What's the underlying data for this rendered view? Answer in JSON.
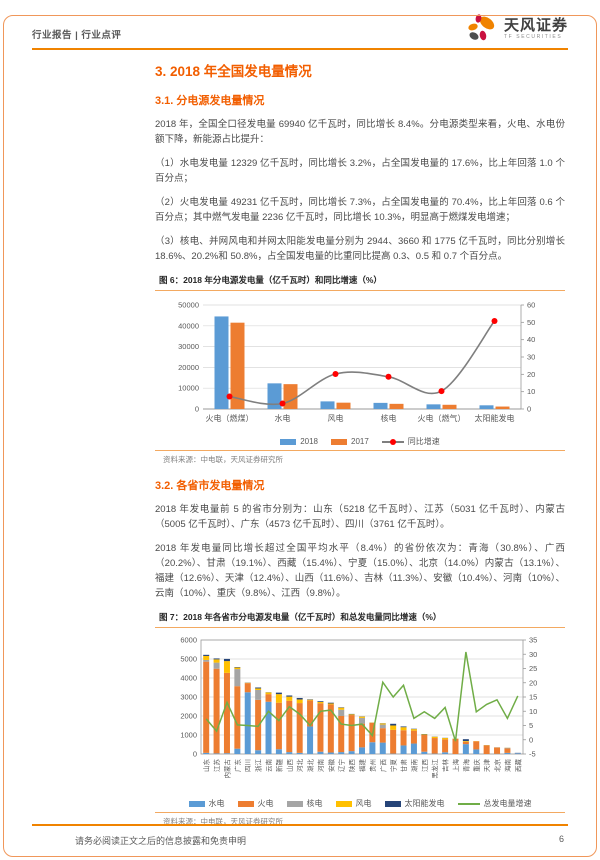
{
  "colors": {
    "accent_orange": "#f08300",
    "heading_orange": "#f25e00",
    "rule_light_orange": "#f3a961"
  },
  "header": {
    "left_label": "行业报告 | 行业点评",
    "brand_name": "天风证券",
    "brand_sub": "TF SECURITIES"
  },
  "sections": {
    "h1": "3. 2018 年全国发电量情况",
    "h2a": "3.1. 分电源发电量情况",
    "p1": "2018 年，全国全口径发电量 69940 亿千瓦时，同比增长 8.4%。分电源类型来看，火电、水电份额下降，新能源占比提升：",
    "p2": "（1）水电发电量 12329 亿千瓦时，同比增长 3.2%，占全国发电量的 17.6%，比上年回落 1.0 个百分点；",
    "p3": "（2）火电发电量 49231 亿千瓦时，同比增长 7.3%，占全国发电量的 70.4%，比上年回落 0.6 个百分点；其中燃气发电量 2236 亿千瓦时，同比增长 10.3%，明显高于燃煤发电增速；",
    "p4": "（3）核电、并网风电和并网太阳能发电量分别为 2944、3660 和 1775 亿千瓦时，同比分别增长 18.6%、20.2%和 50.8%，占全国发电量的比重同比提高 0.3、0.5 和 0.7 个百分点。",
    "h2b": "3.2. 各省市发电量情况",
    "p5": "2018 年发电量前 5 的省市分别为：山东（5218 亿千瓦时）、江苏（5031 亿千瓦时）、内蒙古（5005 亿千瓦时）、广东（4573 亿千瓦时）、四川（3761 亿千瓦时）。",
    "p6": "2018 年发电量同比增长超过全国平均水平（8.4%）的省份依次为：青海（30.8%）、广西（20.2%）、甘肃（19.1%）、西藏（15.4%）、宁夏（15.0%）、北京（14.0%）内蒙古（13.1%）、福建（12.6%）、天津（12.4%）、山西（11.6%）、吉林（11.3%）、安徽（10.4%）、河南（10%）、云南（10%）、重庆（9.8%）、江西（9.8%）。"
  },
  "fig6": {
    "caption": "图 6：2018 年分电源发电量（亿千瓦时）和同比增速（%）",
    "source": "资料来源：中电联，天风证券研究所"
  },
  "fig7": {
    "caption": "图 7：2018 年各省市分电源发电量（亿千瓦时）和总发电量同比增速（%）",
    "source": "资料来源：中电联，天风证券研究所"
  },
  "footer": {
    "disclaimer": "请务必阅读正文之后的信息披露和免责申明",
    "page": "6"
  },
  "chart_data": [
    {
      "type": "bar",
      "subtype": "grouped-bar-with-line",
      "title": "2018 年分电源发电量（亿千瓦时）和同比增速（%）",
      "categories": [
        "火电（燃煤）",
        "水电",
        "风电",
        "核电",
        "火电（燃气）",
        "太阳能发电"
      ],
      "series": [
        {
          "name": "2018",
          "color": "#5b9bd5",
          "values": [
            44500,
            12329,
            3660,
            2944,
            2236,
            1775
          ]
        },
        {
          "name": "2017",
          "color": "#ed7d31",
          "values": [
            41500,
            11945,
            3046,
            2483,
            2027,
            1177
          ]
        }
      ],
      "line": {
        "name": "同比增速",
        "color": "#7f7f7f",
        "marker": "#ff0000",
        "values": [
          7.2,
          3.2,
          20.2,
          18.6,
          10.3,
          50.8
        ]
      },
      "y_left": {
        "min": 0,
        "max": 50000,
        "step": 10000
      },
      "y_right": {
        "min": 0,
        "max": 60,
        "step": 10
      },
      "grid": true,
      "legend_position": "bottom"
    },
    {
      "type": "bar",
      "subtype": "stacked-bar-with-line",
      "title": "2018 年各省市分电源发电量（亿千瓦时）和总发电量同比增速（%）",
      "categories": [
        "山东",
        "江苏",
        "内蒙古",
        "广东",
        "四川",
        "浙江",
        "云南",
        "新疆",
        "山西",
        "河北",
        "湖北",
        "河南",
        "安徽",
        "辽宁",
        "陕西",
        "福建",
        "贵州",
        "广西",
        "宁夏",
        "甘肃",
        "湖南",
        "江西",
        "黑龙江",
        "吉林",
        "上海",
        "青海",
        "重庆",
        "天津",
        "北京",
        "海南",
        "西藏"
      ],
      "series": [
        {
          "name": "水电",
          "color": "#5b9bd5",
          "values": [
            60,
            30,
            40,
            280,
            3250,
            200,
            2750,
            250,
            100,
            60,
            1450,
            120,
            80,
            100,
            150,
            350,
            620,
            600,
            20,
            450,
            550,
            120,
            20,
            90,
            0,
            520,
            240,
            0,
            10,
            60,
            40
          ]
        },
        {
          "name": "火电",
          "color": "#ed7d31",
          "values": [
            4800,
            4460,
            4230,
            3290,
            480,
            2650,
            400,
            2450,
            2700,
            2620,
            1370,
            2550,
            2530,
            1900,
            1900,
            1250,
            1020,
            760,
            1250,
            800,
            680,
            880,
            820,
            680,
            795,
            120,
            430,
            450,
            330,
            230,
            5
          ]
        },
        {
          "name": "核电",
          "color": "#a5a5a5",
          "values": [
            90,
            320,
            0,
            900,
            0,
            520,
            0,
            0,
            0,
            0,
            0,
            0,
            0,
            330,
            0,
            300,
            0,
            190,
            0,
            0,
            0,
            0,
            0,
            0,
            0,
            0,
            0,
            0,
            0,
            25,
            0
          ]
        },
        {
          "name": "风电",
          "color": "#ffc000",
          "values": [
            210,
            170,
            620,
            80,
            20,
            80,
            90,
            450,
            220,
            190,
            40,
            70,
            50,
            110,
            40,
            70,
            15,
            60,
            230,
            160,
            80,
            30,
            70,
            70,
            15,
            40,
            10,
            15,
            5,
            10,
            0
          ]
        },
        {
          "name": "太阳能发电",
          "color": "#264478",
          "values": [
            60,
            50,
            115,
            25,
            10,
            50,
            10,
            80,
            60,
            80,
            20,
            40,
            40,
            20,
            20,
            10,
            5,
            10,
            90,
            40,
            20,
            20,
            10,
            10,
            5,
            100,
            0,
            5,
            5,
            5,
            15
          ]
        }
      ],
      "line": {
        "name": "总发电量增速",
        "color": "#70ad47",
        "values": [
          7.3,
          3.0,
          13.1,
          5.2,
          5.0,
          4.7,
          10.0,
          6.7,
          11.6,
          9.0,
          5.0,
          10.0,
          10.4,
          5.5,
          5.0,
          5.5,
          1.5,
          20.2,
          15.0,
          19.1,
          7.5,
          9.8,
          7.5,
          11.3,
          -0.5,
          30.8,
          9.8,
          12.4,
          14.0,
          7.5,
          15.4
        ]
      },
      "y_left": {
        "min": 0,
        "max": 6000,
        "step": 1000
      },
      "y_right": {
        "min": -5,
        "max": 35,
        "step": 5
      },
      "grid": true,
      "legend_position": "bottom"
    }
  ]
}
